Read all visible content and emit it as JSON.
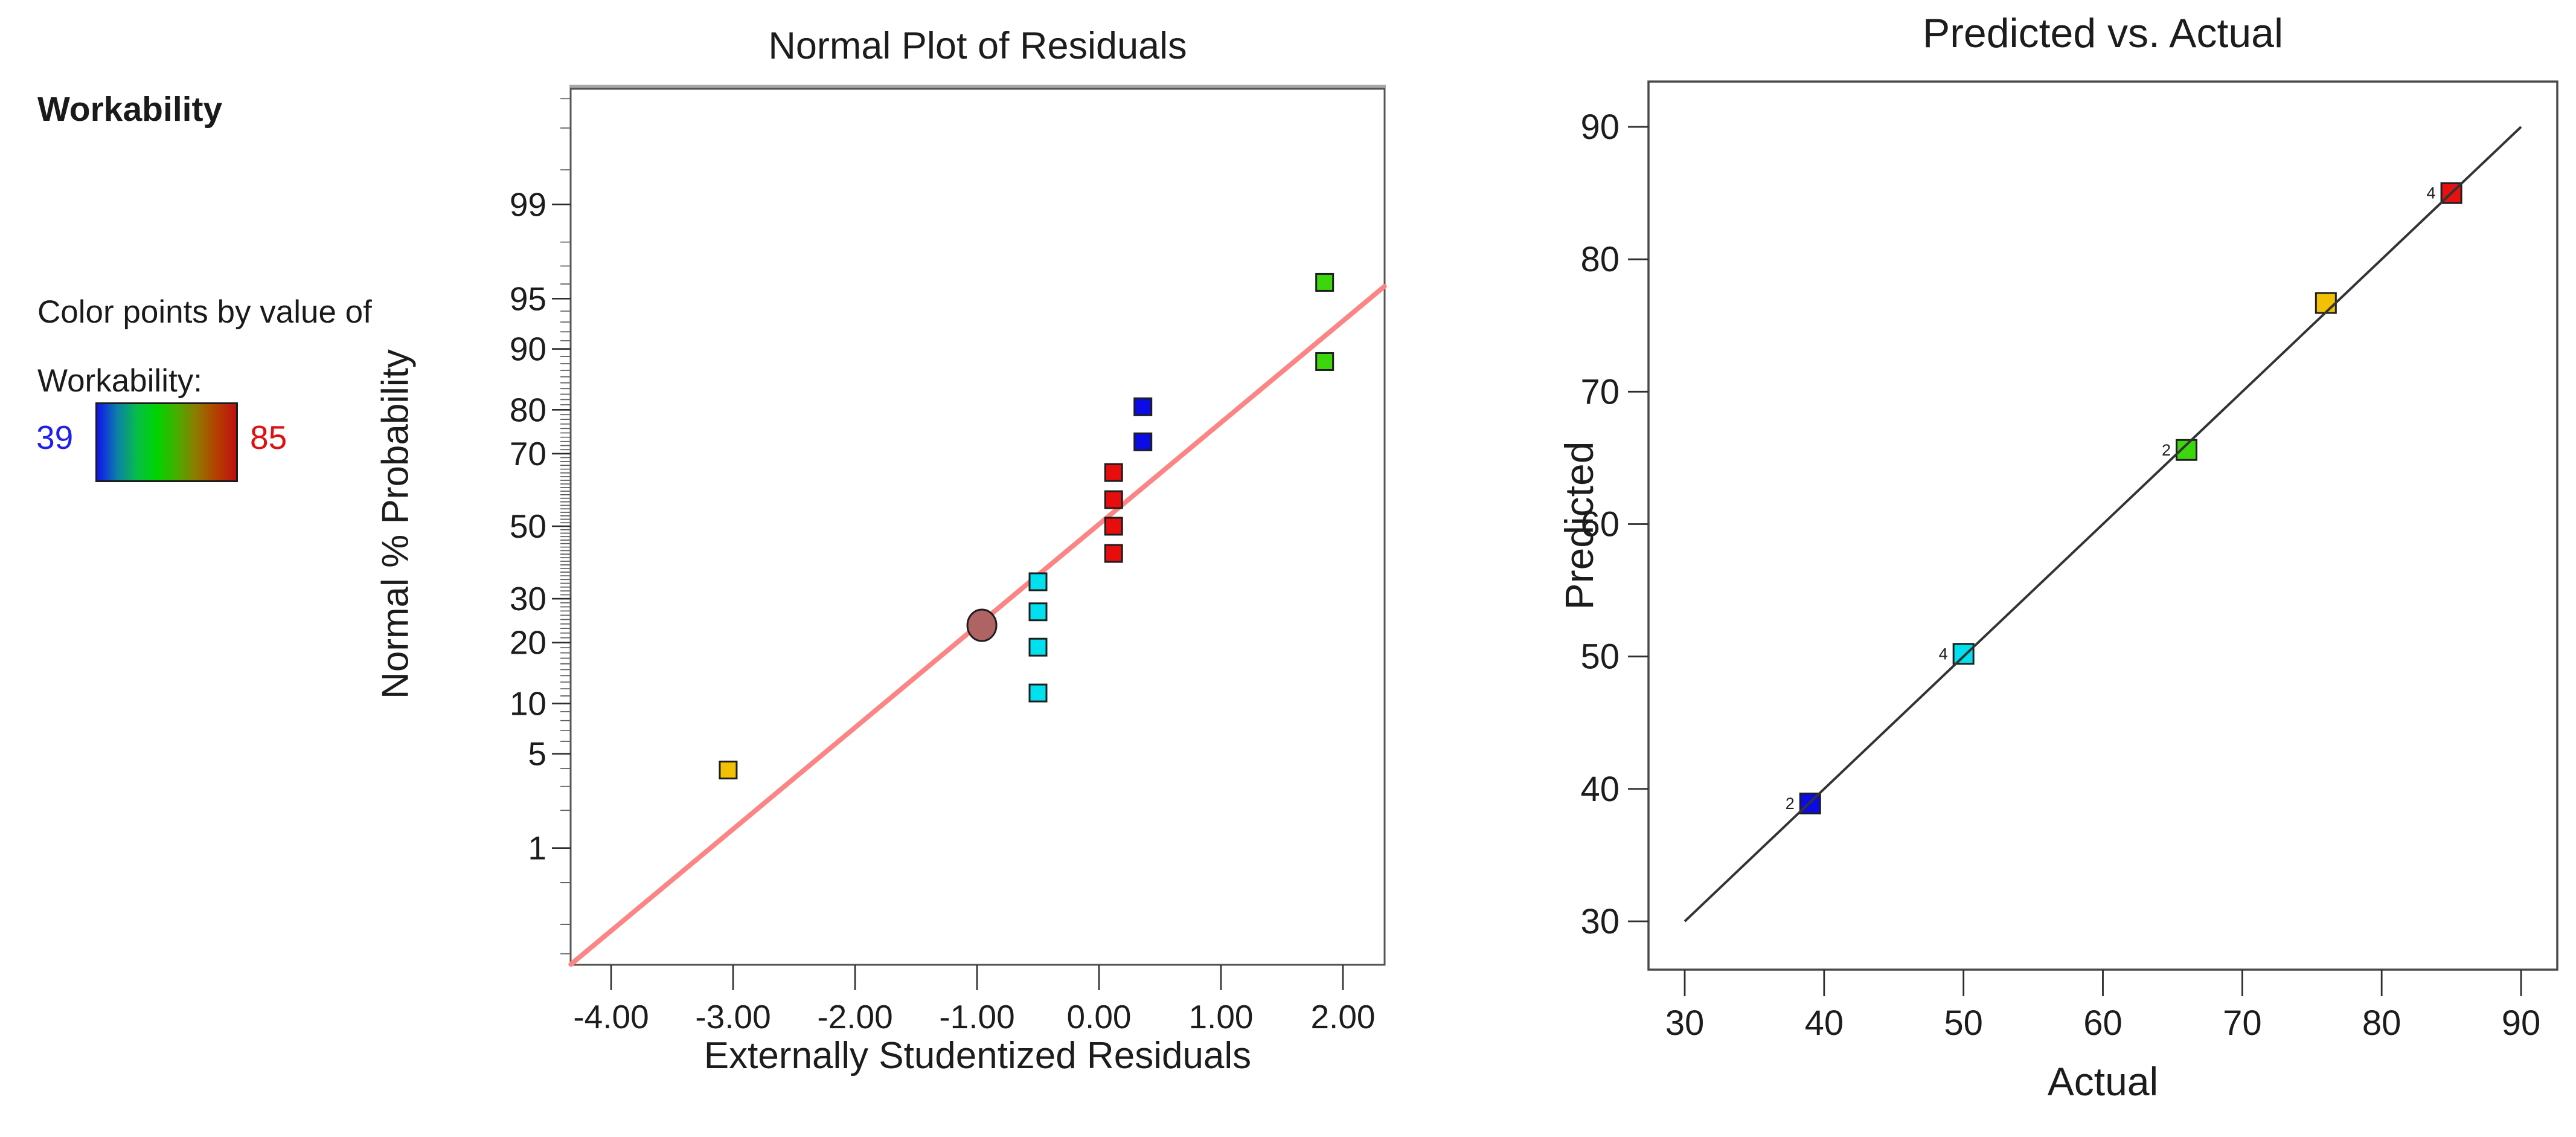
{
  "legend": {
    "title": "Workability",
    "caption_line1": "Color points by value of",
    "caption_line2": "Workability:",
    "min_value": "39",
    "max_value": "85",
    "min_color": "#2020EE",
    "max_color": "#E01010",
    "gradient_stops": [
      "#1212EE",
      "#0C7FA8",
      "#06BE4A",
      "#00D400",
      "#46AE00",
      "#8F7A00",
      "#B54000",
      "#C01010"
    ]
  },
  "chart_data": [
    {
      "type": "scatter",
      "title": "Normal Plot of Residuals",
      "xlabel": "Externally Studentized Residuals",
      "ylabel": "Normal % Probability",
      "y_scale": "normal-probability-probit",
      "xlim": [
        -4.33,
        2.34
      ],
      "ylim_percent": [
        0.077,
        99.92
      ],
      "x_ticks": [
        {
          "value": -4,
          "label": "-4.00"
        },
        {
          "value": -3,
          "label": "-3.00"
        },
        {
          "value": -2,
          "label": "-2.00"
        },
        {
          "value": -1,
          "label": "-1.00"
        },
        {
          "value": 0,
          "label": "0.00"
        },
        {
          "value": 1,
          "label": "1.00"
        },
        {
          "value": 2,
          "label": "2.00"
        }
      ],
      "y_ticks_major": [
        1,
        5,
        10,
        20,
        30,
        50,
        70,
        80,
        90,
        95,
        99
      ],
      "trend_line": {
        "x1": -4.33,
        "p1": 0.077,
        "x2": 2.34,
        "p2": 95.85,
        "color": "#FC8484"
      },
      "grid": false,
      "points": [
        {
          "x": -3.04,
          "p": 3.9,
          "color": "#F3C103",
          "shape": "square"
        },
        {
          "x": -0.96,
          "p": 23.7,
          "color": "#B06363",
          "shape": "circle"
        },
        {
          "x": -0.5,
          "p": 11.4,
          "color": "#00E0EF",
          "shape": "square"
        },
        {
          "x": -0.5,
          "p": 19.1,
          "color": "#00E0EF",
          "shape": "square"
        },
        {
          "x": -0.5,
          "p": 26.8,
          "color": "#00E0EF",
          "shape": "square"
        },
        {
          "x": -0.5,
          "p": 34.4,
          "color": "#00E0EF",
          "shape": "square"
        },
        {
          "x": 0.12,
          "p": 42.2,
          "color": "#E80D0D",
          "shape": "square"
        },
        {
          "x": 0.12,
          "p": 50.0,
          "color": "#E80D0D",
          "shape": "square"
        },
        {
          "x": 0.12,
          "p": 57.6,
          "color": "#E80D0D",
          "shape": "square"
        },
        {
          "x": 0.12,
          "p": 65.1,
          "color": "#E80D0D",
          "shape": "square"
        },
        {
          "x": 0.36,
          "p": 72.9,
          "color": "#0B0BE6",
          "shape": "square"
        },
        {
          "x": 0.36,
          "p": 80.6,
          "color": "#0B0BE6",
          "shape": "square"
        },
        {
          "x": 1.85,
          "p": 88.3,
          "color": "#3CD60C",
          "shape": "square"
        },
        {
          "x": 1.85,
          "p": 96.1,
          "color": "#3CD60C",
          "shape": "square"
        }
      ]
    },
    {
      "type": "scatter",
      "title": "Predicted vs. Actual",
      "xlabel": "Actual",
      "ylabel": "Predicted",
      "xlim": [
        26.5,
        93.5
      ],
      "ylim": [
        26.5,
        93.5
      ],
      "x_ticks": [
        30,
        40,
        50,
        60,
        70,
        80,
        90
      ],
      "y_ticks": [
        30,
        40,
        50,
        60,
        70,
        80,
        90
      ],
      "identity_line": {
        "x1": 30,
        "y1": 30,
        "x2": 90,
        "y2": 90,
        "color": "#333333"
      },
      "grid": false,
      "points": [
        {
          "x": 39,
          "y": 38.9,
          "color": "#0B0BE6",
          "count": "2"
        },
        {
          "x": 50,
          "y": 50.2,
          "color": "#00E0EF",
          "count": "4"
        },
        {
          "x": 66,
          "y": 65.6,
          "color": "#3CD60C",
          "count": "2"
        },
        {
          "x": 76,
          "y": 76.7,
          "color": "#F3C103",
          "count": ""
        },
        {
          "x": 85,
          "y": 85.0,
          "color": "#E51212",
          "count": "4"
        }
      ]
    }
  ]
}
